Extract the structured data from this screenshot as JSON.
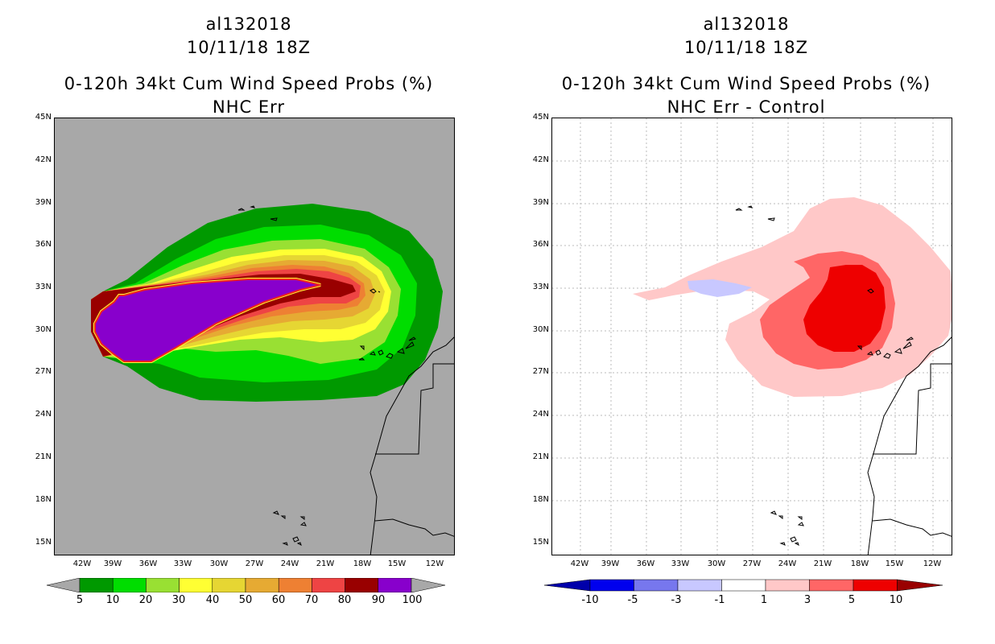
{
  "left": {
    "storm_id": "al132018",
    "datetime": "10/11/18 18Z",
    "product": "0-120h 34kt Cum Wind Speed Probs (%)",
    "subtitle": "NHC Err",
    "colorbar_labels": [
      "5",
      "10",
      "20",
      "30",
      "40",
      "50",
      "60",
      "70",
      "80",
      "90",
      "100"
    ],
    "colorbar_colors": [
      "#009900",
      "#00dd00",
      "#99e033",
      "#ffff33",
      "#e6d633",
      "#e6aa33",
      "#ee8033",
      "#ee4444",
      "#990000",
      "#8800cc"
    ],
    "background_color": "#a8a8a8"
  },
  "right": {
    "storm_id": "al132018",
    "datetime": "10/11/18 18Z",
    "product": "0-120h 34kt Cum Wind Speed Probs (%)",
    "subtitle": "NHC Err - Control",
    "colorbar_labels": [
      "-10",
      "-5",
      "-3",
      "-1",
      "1",
      "3",
      "5",
      "10"
    ],
    "colorbar_colors": [
      "#0000aa",
      "#0000ee",
      "#7777ee",
      "#c8c8ff",
      "#ffffff",
      "#ffc8c8",
      "#ff6666",
      "#ee0000",
      "#990000"
    ]
  },
  "axes": {
    "lat_labels": [
      "45N",
      "42N",
      "39N",
      "36N",
      "33N",
      "30N",
      "27N",
      "24N",
      "21N",
      "18N",
      "15N"
    ],
    "lon_labels": [
      "42W",
      "39W",
      "36W",
      "33W",
      "30W",
      "27W",
      "24W",
      "21W",
      "18W",
      "15W",
      "12W"
    ]
  }
}
